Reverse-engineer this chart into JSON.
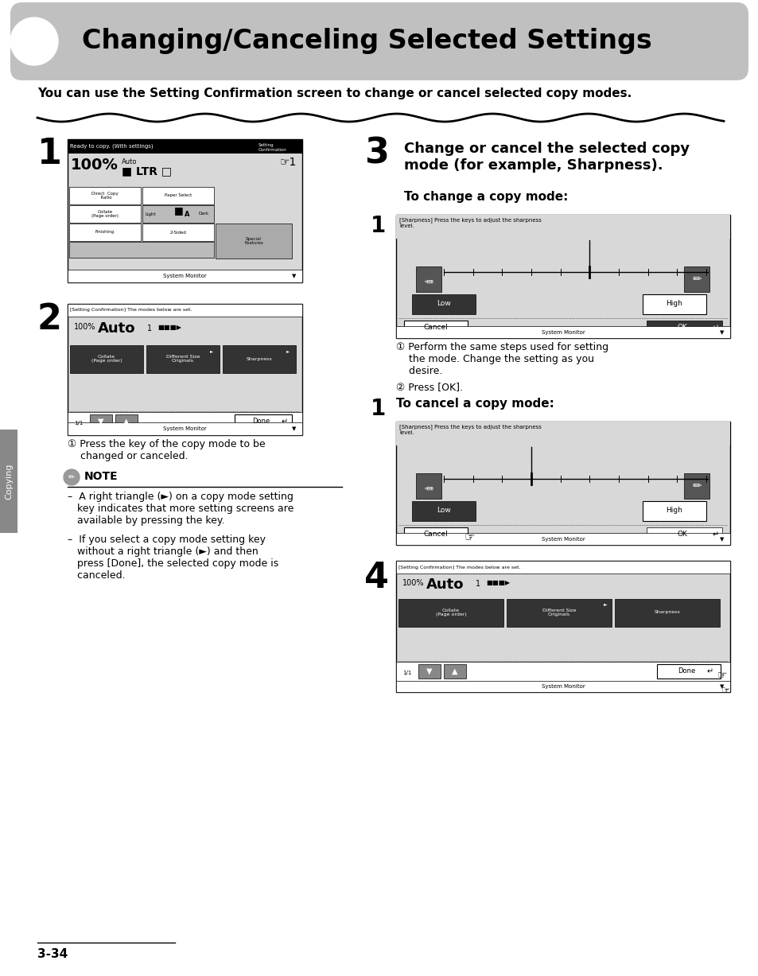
{
  "title": "Changing/Canceling Selected Settings",
  "subtitle": "You can use the Setting Confirmation screen to change or cancel selected copy modes.",
  "bg_color": "#ffffff",
  "page_number": "3-34",
  "section_label": "Copying"
}
